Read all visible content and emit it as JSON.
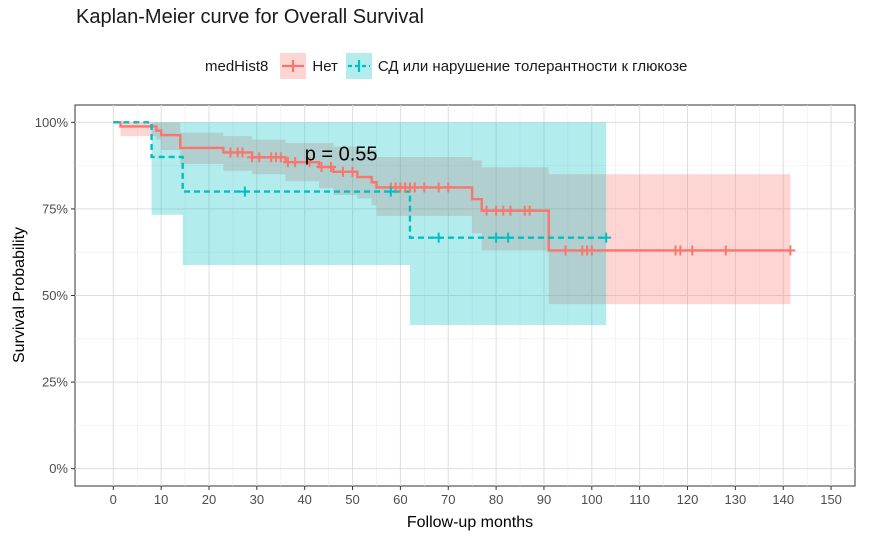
{
  "chart_data": {
    "type": "line",
    "title": "Kaplan-Meier curve for Overall Survival",
    "xlabel": "Follow-up months",
    "ylabel": "Survival Probability",
    "xlim": [
      -8,
      155
    ],
    "ylim": [
      -0.05,
      1.05
    ],
    "x_ticks": [
      0,
      10,
      20,
      30,
      40,
      50,
      60,
      70,
      80,
      90,
      100,
      110,
      120,
      130,
      140,
      150
    ],
    "y_ticks": [
      0,
      0.25,
      0.5,
      0.75,
      1.0
    ],
    "y_tick_labels": [
      "0%",
      "25%",
      "50%",
      "75%",
      "100%"
    ],
    "grid": true,
    "legend_title": "medHist8",
    "legend_position": "top",
    "annotation": "p = 0.55",
    "annotation_pos": [
      40,
      0.89
    ],
    "series": [
      {
        "name": "Нет",
        "color": "#F8766D",
        "fill": "#F8766D",
        "linestyle": "solid",
        "steps": [
          [
            0,
            1.0
          ],
          [
            1.5,
            0.988
          ],
          [
            9,
            0.976
          ],
          [
            10,
            0.963
          ],
          [
            14,
            0.926
          ],
          [
            23,
            0.913
          ],
          [
            29,
            0.899
          ],
          [
            36,
            0.885
          ],
          [
            43,
            0.871
          ],
          [
            46,
            0.857
          ],
          [
            51,
            0.842
          ],
          [
            54,
            0.827
          ],
          [
            55,
            0.812
          ],
          [
            75,
            0.778
          ],
          [
            77,
            0.745
          ],
          [
            90,
            0.745
          ],
          [
            91,
            0.63
          ],
          [
            141.5,
            0.63
          ]
        ],
        "ci_upper": [
          [
            0,
            1.0
          ],
          [
            9,
            1.0
          ],
          [
            14,
            0.97
          ],
          [
            23,
            0.96
          ],
          [
            29,
            0.95
          ],
          [
            36,
            0.94
          ],
          [
            40,
            0.94
          ],
          [
            46,
            0.93
          ],
          [
            51,
            0.92
          ],
          [
            55,
            0.9
          ],
          [
            75,
            0.89
          ],
          [
            77,
            0.87
          ],
          [
            91,
            0.85
          ],
          [
            141.5,
            0.85
          ]
        ],
        "ci_lower": [
          [
            0,
            1.0
          ],
          [
            1.5,
            0.96
          ],
          [
            9,
            0.95
          ],
          [
            10,
            0.92
          ],
          [
            14,
            0.88
          ],
          [
            23,
            0.86
          ],
          [
            29,
            0.85
          ],
          [
            36,
            0.83
          ],
          [
            43,
            0.81
          ],
          [
            46,
            0.79
          ],
          [
            51,
            0.78
          ],
          [
            54,
            0.76
          ],
          [
            55,
            0.73
          ],
          [
            75,
            0.68
          ],
          [
            77,
            0.63
          ],
          [
            90,
            0.63
          ],
          [
            91,
            0.475
          ],
          [
            141.5,
            0.475
          ]
        ],
        "censor_x": [
          24.5,
          26,
          27,
          29,
          30.5,
          33,
          34,
          35,
          36.5,
          38,
          41,
          43.5,
          45.5,
          48,
          50,
          58,
          59,
          60,
          61,
          62,
          63,
          65,
          68,
          70,
          78,
          80,
          81.5,
          83,
          86,
          87,
          94.5,
          98,
          99,
          100,
          117.5,
          118.5,
          121,
          128,
          141.5
        ]
      },
      {
        "name": "СД или нарушение толерантности к глюкозе",
        "color": "#00BFC4",
        "fill": "#00BFC4",
        "linestyle": "dashed",
        "steps": [
          [
            0,
            1.0
          ],
          [
            8,
            0.9
          ],
          [
            14.5,
            0.8
          ],
          [
            62,
            0.667
          ],
          [
            103,
            0.667
          ]
        ],
        "ci_upper": [
          [
            0,
            1.0
          ],
          [
            103,
            1.0
          ]
        ],
        "ci_lower": [
          [
            0,
            1.0
          ],
          [
            8,
            0.733
          ],
          [
            14.5,
            0.588
          ],
          [
            62,
            0.415
          ],
          [
            103,
            0.415
          ]
        ],
        "censor_x": [
          27.5,
          58,
          68,
          80,
          82.5,
          103
        ]
      }
    ]
  }
}
